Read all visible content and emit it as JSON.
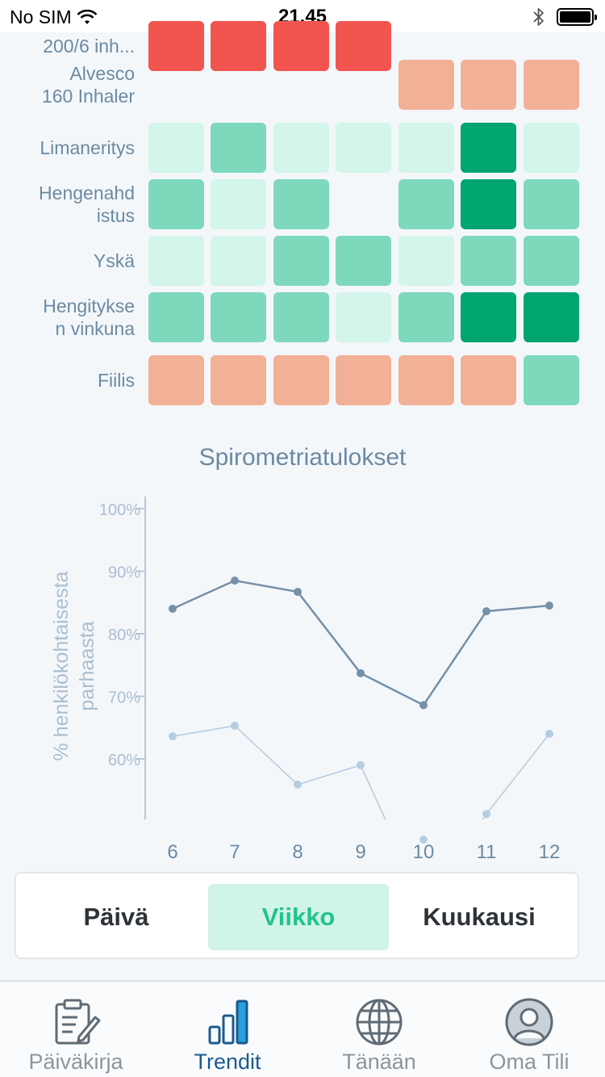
{
  "status_bar": {
    "carrier": "No SIM",
    "time": "21.45"
  },
  "heatmap": {
    "rows": [
      {
        "label_lines": [
          "200/6 inh..."
        ],
        "cells": [
          "red",
          "red",
          "red",
          "red",
          "none",
          "none",
          "none"
        ]
      },
      {
        "label_lines": [
          "Alvesco",
          "160 Inhaler"
        ],
        "cells": [
          "none",
          "none",
          "none",
          "none",
          "salmon",
          "salmon",
          "salmon"
        ]
      },
      {
        "label_lines": [
          "Limaneritys"
        ],
        "cells": [
          "light",
          "mid",
          "light",
          "light",
          "light",
          "dark",
          "light"
        ]
      },
      {
        "label_lines": [
          "Hengenahd",
          "istus"
        ],
        "cells": [
          "mid",
          "light",
          "mid",
          "none",
          "mid",
          "dark",
          "mid"
        ]
      },
      {
        "label_lines": [
          "Yskä"
        ],
        "cells": [
          "light",
          "light",
          "mid",
          "mid",
          "light",
          "mid",
          "mid"
        ]
      },
      {
        "label_lines": [
          "Hengitykse",
          "n vinkuna"
        ],
        "cells": [
          "mid",
          "mid",
          "mid",
          "light",
          "mid",
          "dark",
          "dark"
        ]
      },
      {
        "label_lines": [
          "Fiilis"
        ],
        "cells": [
          "salmon",
          "salmon",
          "salmon",
          "salmon",
          "salmon",
          "salmon",
          "mid"
        ]
      }
    ],
    "colors": {
      "red": "#f25450",
      "salmon": "#f2b097",
      "light": "#d3f5ea",
      "mid": "#7ed9bc",
      "dark": "#00a56f"
    }
  },
  "chart_data": {
    "type": "line",
    "title": "Spirometriatulokset",
    "ylabel": "% henkilökohtaisesta parhaasta",
    "x": [
      "6",
      "7",
      "8",
      "9",
      "10",
      "11",
      "12"
    ],
    "yticks": [
      "100%",
      "90%",
      "80%",
      "70%",
      "60%"
    ],
    "ylim": [
      50,
      100
    ],
    "grid": false,
    "series": [
      {
        "values": [
          84,
          88.5,
          86.7,
          73.7,
          68.6,
          83.6,
          84.5
        ],
        "color": "#7590a8"
      },
      {
        "values": [
          63.6,
          65.3,
          55.9,
          59.0,
          37.0,
          51.2,
          64.0
        ],
        "color": "#b5cde0"
      }
    ]
  },
  "segments": {
    "items": [
      "Päivä",
      "Viikko",
      "Kuukausi"
    ],
    "active": 1
  },
  "tabbar": {
    "items": [
      "Päiväkirja",
      "Trendit",
      "Tänään",
      "Oma Tili"
    ],
    "active": 1
  }
}
